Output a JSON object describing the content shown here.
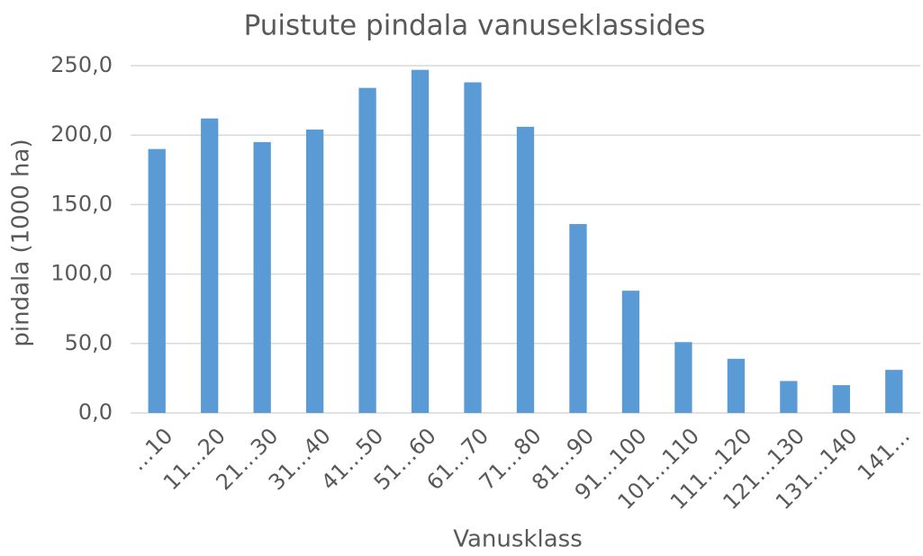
{
  "chart_data": {
    "type": "bar",
    "title": "Puistute pindala vanuseklassides",
    "x_label": "Vanusklass",
    "y_label": "pindala (1000 ha)",
    "categories": [
      "…10",
      "11…20",
      "21…30",
      "31…40",
      "41…50",
      "51…60",
      "61…70",
      "71…80",
      "81…90",
      "91…100",
      "101…110",
      "111…120",
      "121…130",
      "131…140",
      "141…"
    ],
    "values": [
      190,
      212,
      195,
      204,
      234,
      247,
      238,
      206,
      136,
      88,
      51,
      39,
      23,
      20,
      31
    ],
    "color": "#5b9bd5",
    "ylim": [
      0,
      250
    ],
    "yticks": [
      {
        "value": 0,
        "label": "0,0"
      },
      {
        "value": 50,
        "label": "50,0"
      },
      {
        "value": 100,
        "label": "100,0"
      },
      {
        "value": 150,
        "label": "150,0"
      },
      {
        "value": 200,
        "label": "200,0"
      },
      {
        "value": 250,
        "label": "250,0"
      }
    ],
    "grid": true
  }
}
